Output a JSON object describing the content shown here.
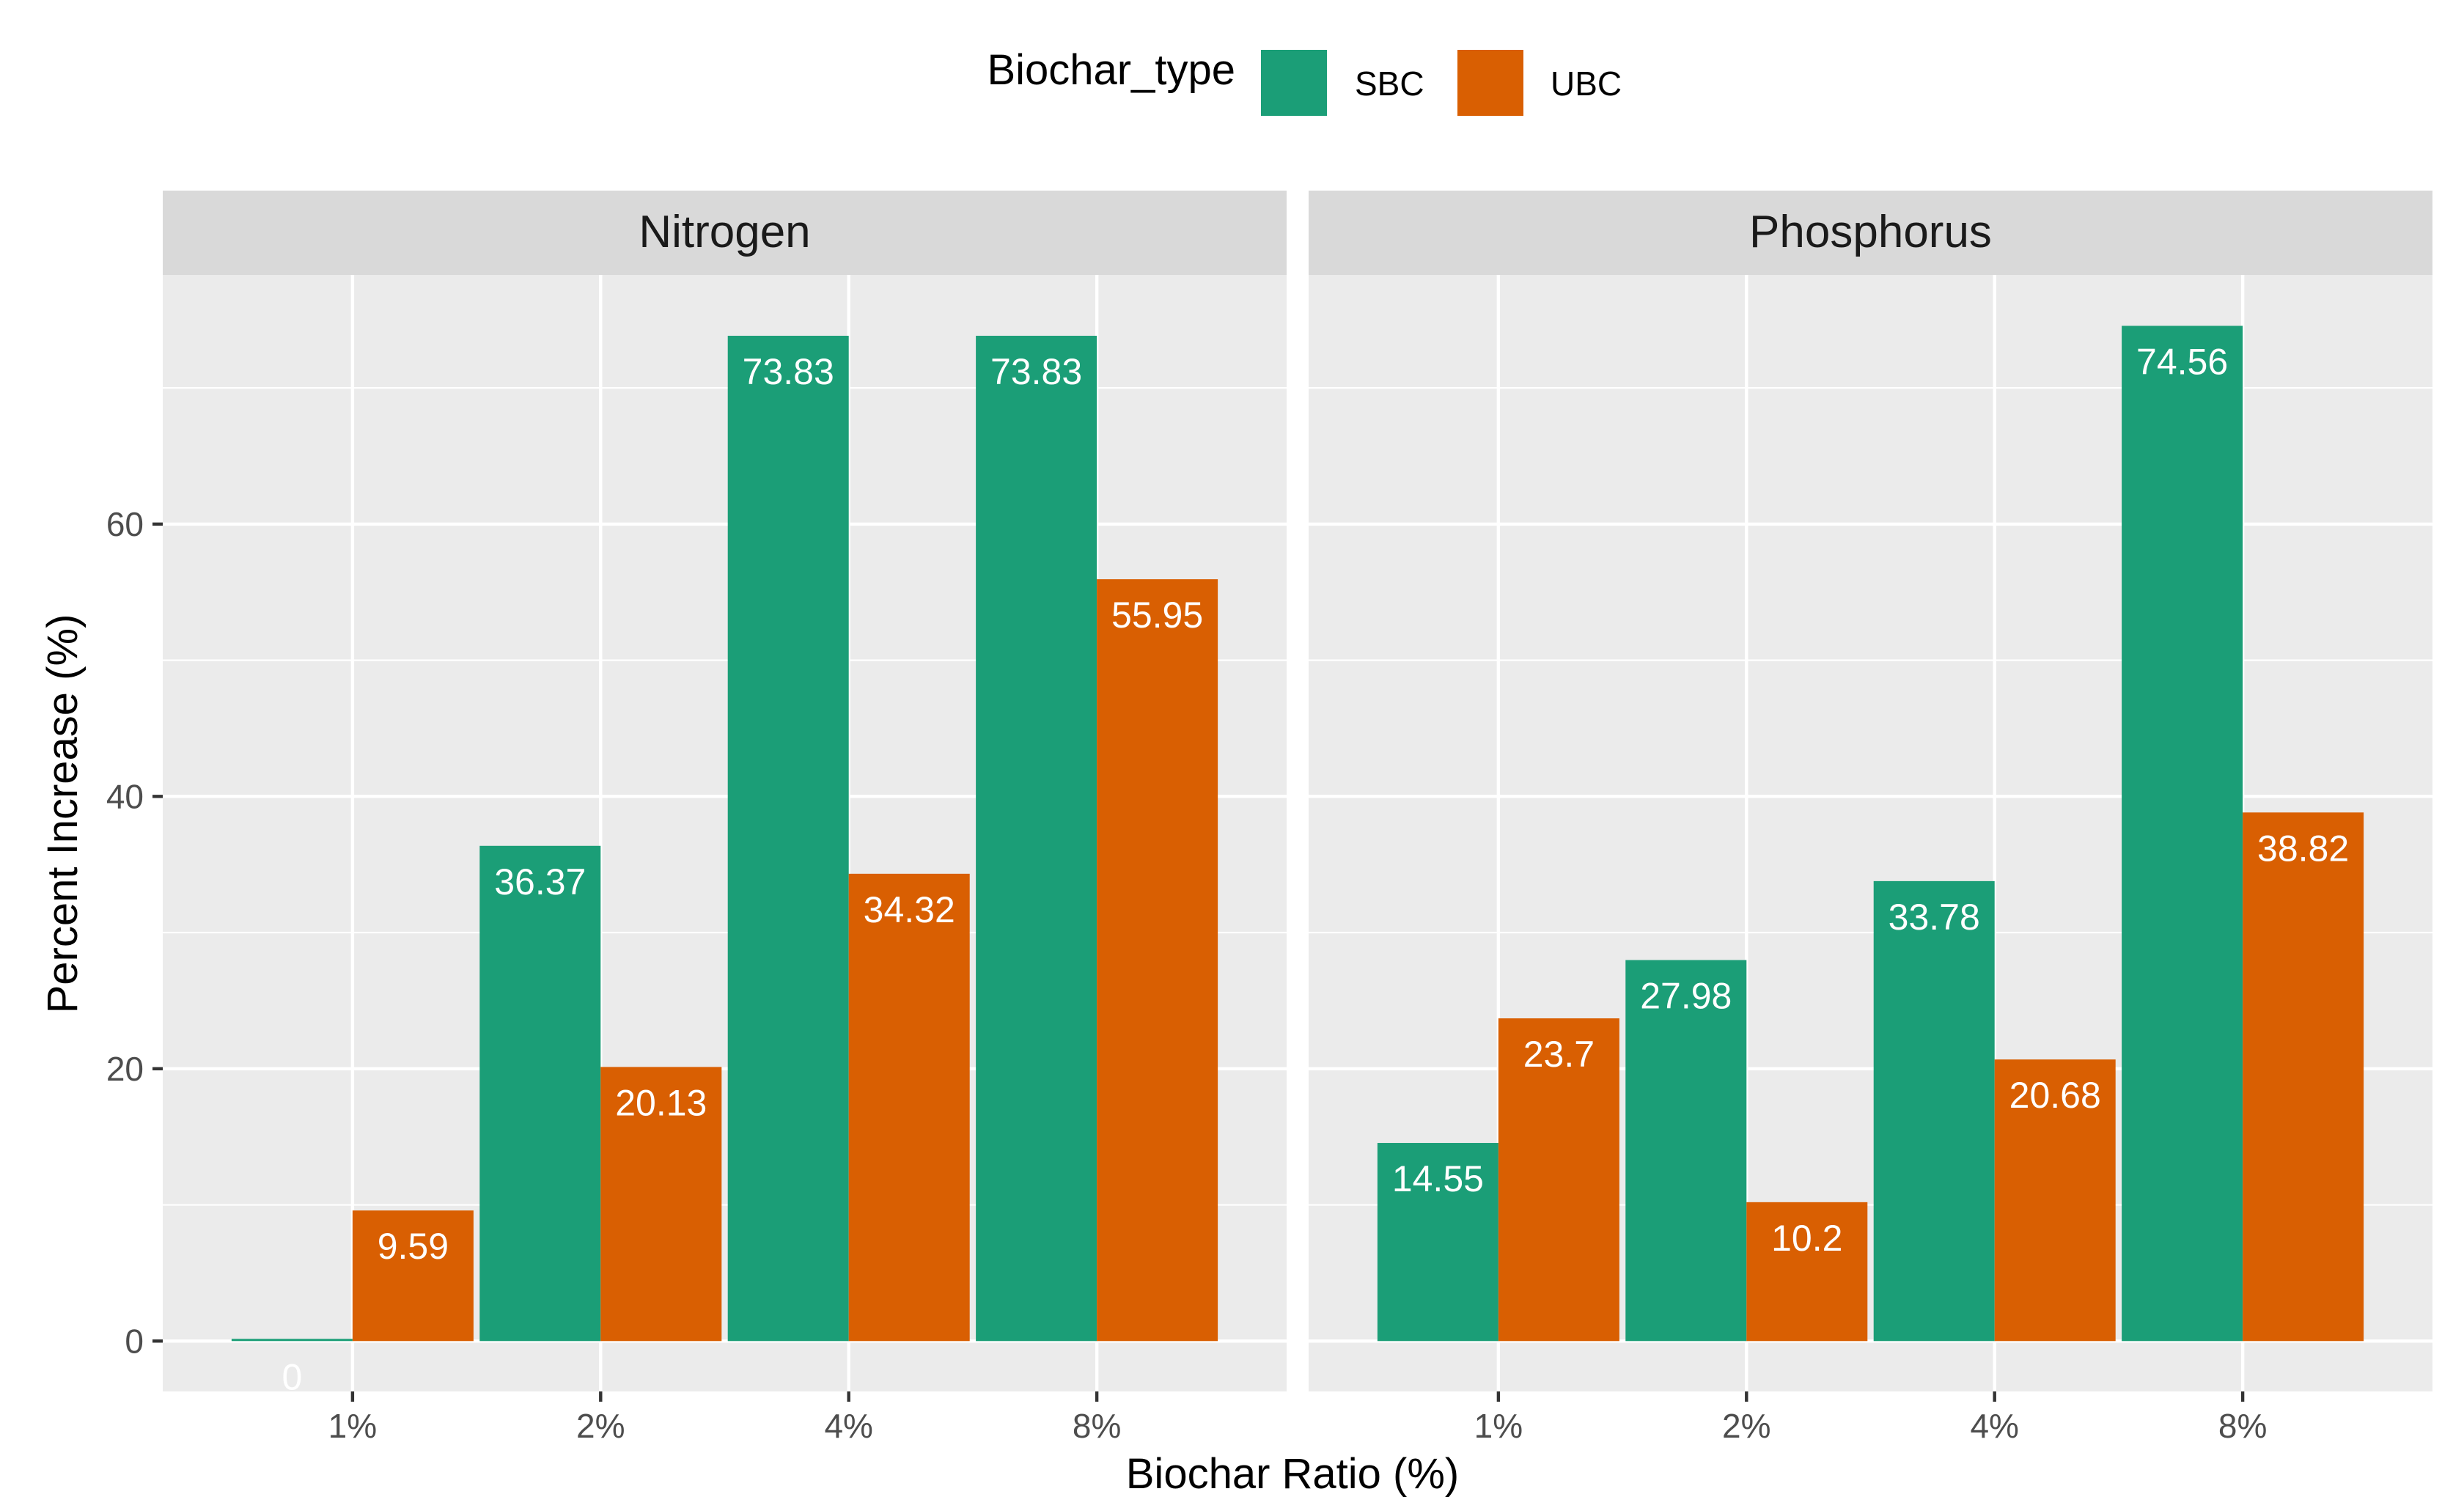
{
  "chart_data": {
    "type": "bar",
    "legend": {
      "title": "Biochar_type",
      "position": "top",
      "entries": [
        {
          "name": "SBC",
          "color": "#1B9E77"
        },
        {
          "name": "UBC",
          "color": "#D95F02"
        }
      ]
    },
    "xlabel": "Biochar Ratio (%)",
    "ylabel": "Percent Increase (%)",
    "categories": [
      "1%",
      "2%",
      "4%",
      "8%"
    ],
    "ylim": [
      -3.7,
      78.3
    ],
    "yticks": [
      0,
      20,
      40,
      60
    ],
    "grid": true,
    "facets": [
      {
        "title": "Nitrogen",
        "series": [
          {
            "name": "SBC",
            "values": [
              0,
              36.37,
              73.83,
              73.83
            ],
            "labels": [
              "0",
              "36.37",
              "73.83",
              "73.83"
            ]
          },
          {
            "name": "UBC",
            "values": [
              9.59,
              20.13,
              34.32,
              55.95
            ],
            "labels": [
              "9.59",
              "20.13",
              "34.32",
              "55.95"
            ]
          }
        ]
      },
      {
        "title": "Phosphorus",
        "series": [
          {
            "name": "SBC",
            "values": [
              14.55,
              27.98,
              33.78,
              74.56
            ],
            "labels": [
              "14.55",
              "27.98",
              "33.78",
              "74.56"
            ]
          },
          {
            "name": "UBC",
            "values": [
              23.7,
              10.2,
              20.68,
              38.82
            ],
            "labels": [
              "23.7",
              "10.2",
              "20.68",
              "38.82"
            ]
          }
        ]
      }
    ]
  },
  "colors": {
    "panel_bg": "#EBEBEB",
    "strip_bg": "#D9D9D9",
    "grid": "#FFFFFF",
    "axis_text": "#4D4D4D",
    "title_text": "#1A1A1A"
  }
}
